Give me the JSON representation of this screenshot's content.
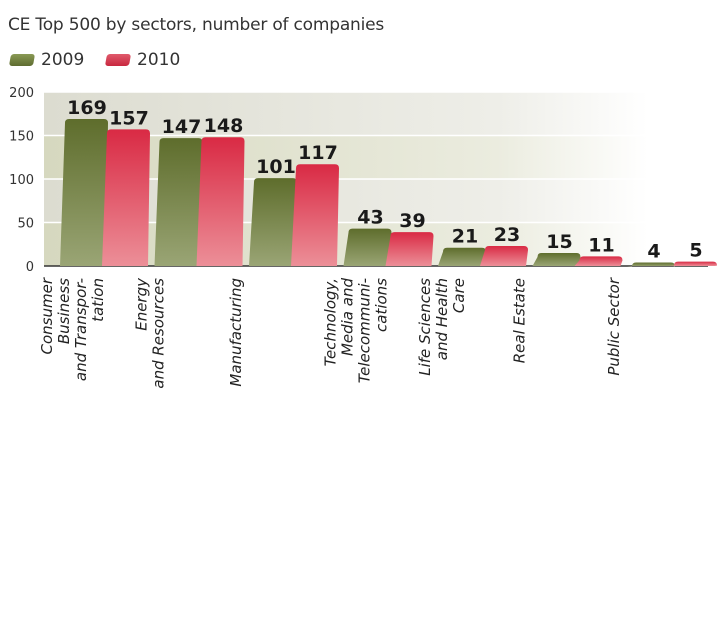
{
  "chart_data": {
    "type": "bar",
    "title": "CE Top 500 by sectors, number of companies",
    "categories": [
      [
        "Consumer",
        "Business",
        "and Transpor-",
        "tation"
      ],
      [
        "Energy",
        "and Resources"
      ],
      [
        "Manufacturing"
      ],
      [
        "Technology,",
        "Media and",
        "Telecommuni-",
        "cations"
      ],
      [
        "Life Sciences",
        "and Health",
        "Care"
      ],
      [
        "Real Estate"
      ],
      [
        "Public Sector"
      ]
    ],
    "series": [
      {
        "name": "2009",
        "values": [
          169,
          147,
          101,
          43,
          21,
          15,
          4
        ],
        "color": "#6b7a3a"
      },
      {
        "name": "2010",
        "values": [
          157,
          148,
          117,
          39,
          23,
          11,
          5
        ],
        "color": "#d9304a"
      }
    ],
    "yticks": [
      "0",
      "50",
      "100",
      "150",
      "200"
    ],
    "ylim": [
      0,
      200
    ],
    "legend_position": "top-left",
    "grid": true
  }
}
